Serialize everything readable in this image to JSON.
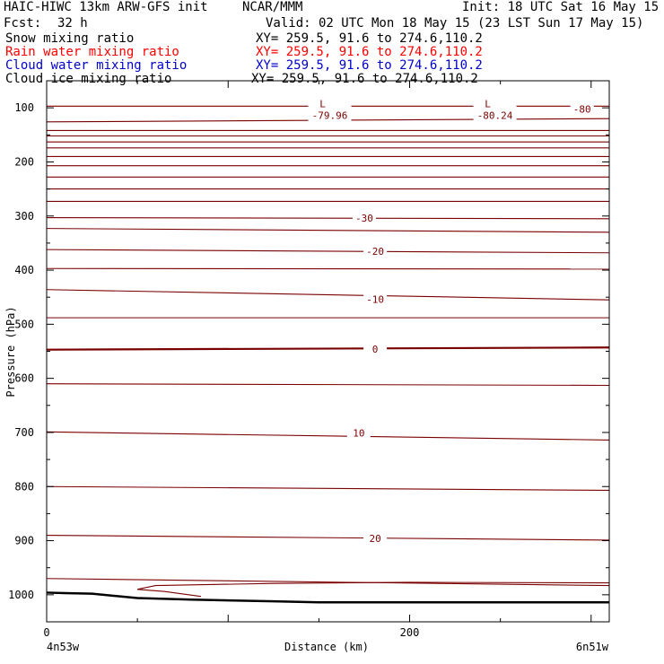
{
  "header": {
    "model": "HAIC-HIWC 13km ARW-GFS init",
    "center": "NCAR/MMM",
    "init": "Init: 18 UTC Sat 16 May 15",
    "fcst_label": "Fcst:",
    "fcst_value": "32 h",
    "valid": "Valid: 02 UTC Mon 18 May 15 (23 LST Sun 17 May 15)"
  },
  "fields": [
    {
      "name": "Snow mixing ratio",
      "xy": "XY= 259.5, 91.6 to 274.6,110.2",
      "color": "#000000"
    },
    {
      "name": "Rain water mixing ratio",
      "xy": "XY= 259.5, 91.6 to 274.6,110.2",
      "color": "#ff0000"
    },
    {
      "name": "Cloud water mixing ratio",
      "xy": "XY= 259.5, 91.6 to 274.6,110.2",
      "color": "#0000cc"
    },
    {
      "name": "Cloud ice mixing ratio",
      "xy": "XY= 259.5, 91.6 to 274.6,110.2",
      "color": "#000000"
    }
  ],
  "chart_data": {
    "type": "line",
    "ylabel": "Pressure (hPa)",
    "xlabel": "Distance (km)",
    "x_start_label": "4n53w",
    "x_end_label": "6n51w",
    "xlim": [
      0,
      310
    ],
    "ylim": [
      1050,
      50
    ],
    "x_ticks": [
      0,
      200
    ],
    "y_ticks": [
      100,
      200,
      300,
      400,
      500,
      600,
      700,
      800,
      900,
      1000
    ],
    "contour_color": "#7a0000",
    "terrain_color": "#000000",
    "isotherms": [
      {
        "label": "-30",
        "x": 175,
        "p": 304
      },
      {
        "label": "-20",
        "x": 181,
        "p": 365
      },
      {
        "label": "-10",
        "x": 181,
        "p": 454
      },
      {
        "label": "0",
        "x": 181,
        "p": 546
      },
      {
        "label": "10",
        "x": 172,
        "p": 701
      },
      {
        "label": "20",
        "x": 181,
        "p": 896
      }
    ],
    "minima": [
      {
        "mark": "L",
        "value": "-79.96",
        "x": 156,
        "p": 96
      },
      {
        "mark": "L",
        "value": "-80.24",
        "x": 247,
        "p": 96
      }
    ],
    "extra_labels": [
      {
        "label": "-80",
        "x": 295,
        "p": 102
      }
    ],
    "terrain": {
      "x": [
        0,
        10,
        25,
        50,
        80,
        125,
        150,
        200,
        250,
        310
      ],
      "p": [
        996,
        997,
        998,
        1006,
        1009,
        1012,
        1014,
        1014,
        1014,
        1014
      ]
    },
    "isotherm_lines": [
      {
        "pl": 97,
        "pr": 97
      },
      {
        "pl": 126,
        "pr": 120
      },
      {
        "pl": 142,
        "pr": 142
      },
      {
        "pl": 152,
        "pr": 152
      },
      {
        "pl": 163,
        "pr": 163
      },
      {
        "pl": 174,
        "pr": 174
      },
      {
        "pl": 190,
        "pr": 190
      },
      {
        "pl": 207,
        "pr": 207
      },
      {
        "pl": 228,
        "pr": 228
      },
      {
        "pl": 250,
        "pr": 250
      },
      {
        "pl": 273,
        "pr": 273
      },
      {
        "pl": 303,
        "pr": 305
      },
      {
        "pl": 323,
        "pr": 330
      },
      {
        "pl": 362,
        "pr": 368
      },
      {
        "pl": 397,
        "pr": 398
      },
      {
        "pl": 436,
        "pr": 455
      },
      {
        "pl": 488,
        "pr": 488
      },
      {
        "pl": 547,
        "pr": 543
      },
      {
        "pl": 610,
        "pr": 613
      },
      {
        "pl": 699,
        "pr": 714
      },
      {
        "pl": 800,
        "pr": 807
      },
      {
        "pl": 890,
        "pr": 899
      },
      {
        "pl": 970,
        "pr": 983
      }
    ]
  }
}
